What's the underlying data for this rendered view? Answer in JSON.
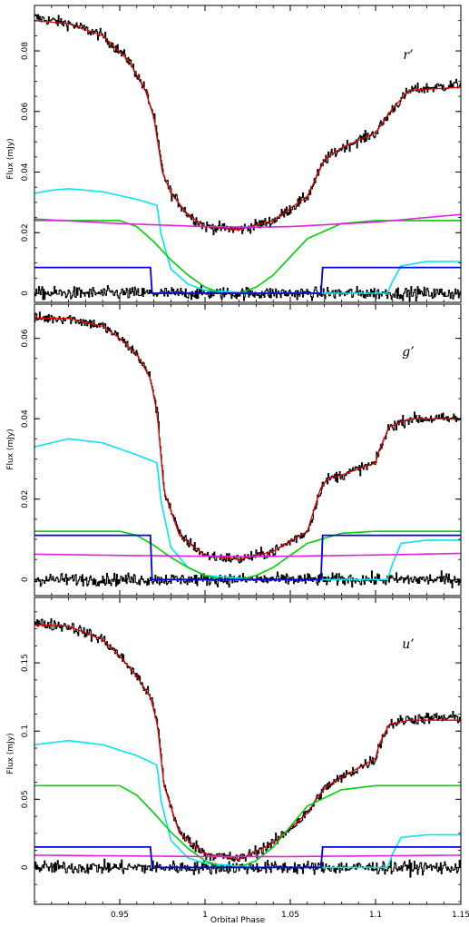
{
  "figure": {
    "xlabel": "Orbital Phase",
    "ylabel": "Flux (mJy)"
  },
  "chart_data": [
    {
      "type": "line",
      "band_label": "r’",
      "xlim": [
        0.9,
        1.15
      ],
      "ylim": [
        -0.003,
        0.095
      ],
      "yticks": [
        0,
        0.02,
        0.04,
        0.06,
        0.08
      ],
      "ytick_labels": [
        "0",
        "0.02",
        "0.04",
        "0.06",
        "0.08"
      ],
      "series": [
        {
          "color": "#000000",
          "style": "noisy-data",
          "x": [
            0.9,
            0.92,
            0.94,
            0.955,
            0.965,
            0.97,
            0.975,
            0.98,
            0.99,
            1.0,
            1.02,
            1.04,
            1.06,
            1.07,
            1.08,
            1.1,
            1.11,
            1.12,
            1.15
          ],
          "y": [
            0.091,
            0.089,
            0.085,
            0.077,
            0.067,
            0.058,
            0.04,
            0.033,
            0.026,
            0.022,
            0.021,
            0.024,
            0.032,
            0.044,
            0.048,
            0.053,
            0.061,
            0.067,
            0.069
          ]
        },
        {
          "color": "#e00000",
          "style": "model",
          "x": [
            0.9,
            0.92,
            0.94,
            0.955,
            0.965,
            0.97,
            0.975,
            0.98,
            0.99,
            1.0,
            1.02,
            1.04,
            1.06,
            1.07,
            1.08,
            1.1,
            1.11,
            1.12,
            1.15
          ],
          "y": [
            0.09,
            0.089,
            0.085,
            0.077,
            0.067,
            0.058,
            0.04,
            0.033,
            0.026,
            0.022,
            0.021,
            0.024,
            0.032,
            0.044,
            0.048,
            0.053,
            0.061,
            0.067,
            0.068
          ]
        },
        {
          "color": "#00e5ee",
          "style": "model",
          "x": [
            0.9,
            0.91,
            0.92,
            0.94,
            0.96,
            0.972,
            0.974,
            0.98,
            0.99,
            1.0,
            1.03,
            1.06,
            1.09,
            1.107,
            1.11,
            1.115,
            1.13,
            1.15
          ],
          "y": [
            0.033,
            0.034,
            0.0345,
            0.0335,
            0.031,
            0.029,
            0.02,
            0.008,
            0.003,
            0.001,
            0.0,
            0.0,
            0.0,
            0.0,
            0.004,
            0.009,
            0.0105,
            0.0105
          ]
        },
        {
          "color": "#00d000",
          "style": "model",
          "x": [
            0.9,
            0.95,
            0.96,
            0.97,
            0.98,
            0.99,
            1.0,
            1.01,
            1.02,
            1.03,
            1.04,
            1.05,
            1.06,
            1.08,
            1.1,
            1.15
          ],
          "y": [
            0.024,
            0.024,
            0.022,
            0.017,
            0.011,
            0.006,
            0.002,
            0.0,
            0.0,
            0.002,
            0.006,
            0.012,
            0.018,
            0.023,
            0.024,
            0.024
          ]
        },
        {
          "color": "#e020e0",
          "style": "model",
          "x": [
            0.9,
            0.95,
            1.0,
            1.025,
            1.05,
            1.1,
            1.15
          ],
          "y": [
            0.0245,
            0.023,
            0.022,
            0.0218,
            0.022,
            0.0235,
            0.026
          ]
        },
        {
          "color": "#0000e0",
          "style": "step",
          "x": [
            0.9,
            0.968,
            0.969,
            1.068,
            1.069,
            1.15
          ],
          "y": [
            0.0085,
            0.0085,
            0.0,
            0.0,
            0.0085,
            0.0085
          ]
        },
        {
          "color": "#000000",
          "style": "residuals",
          "x": [
            0.9,
            1.15
          ],
          "y": [
            0.0,
            0.0
          ]
        }
      ]
    },
    {
      "type": "line",
      "band_label": "g’",
      "xlim": [
        0.9,
        1.15
      ],
      "ylim": [
        -0.004,
        0.0685
      ],
      "yticks": [
        0,
        0.02,
        0.04,
        0.06
      ],
      "ytick_labels": [
        "0",
        "0.02",
        "0.04",
        "0.06"
      ],
      "series": [
        {
          "color": "#000000",
          "style": "noisy-data",
          "x": [
            0.9,
            0.92,
            0.94,
            0.95,
            0.96,
            0.968,
            0.972,
            0.976,
            0.985,
            1.0,
            1.02,
            1.04,
            1.06,
            1.068,
            1.072,
            1.08,
            1.1,
            1.102,
            1.108,
            1.12,
            1.15
          ],
          "y": [
            0.065,
            0.065,
            0.063,
            0.06,
            0.056,
            0.05,
            0.041,
            0.022,
            0.011,
            0.006,
            0.005,
            0.007,
            0.012,
            0.023,
            0.025,
            0.026,
            0.029,
            0.032,
            0.038,
            0.04,
            0.04
          ]
        },
        {
          "color": "#e00000",
          "style": "model",
          "x": [
            0.9,
            0.92,
            0.94,
            0.95,
            0.96,
            0.968,
            0.972,
            0.976,
            0.985,
            1.0,
            1.02,
            1.04,
            1.06,
            1.068,
            1.072,
            1.08,
            1.1,
            1.102,
            1.108,
            1.12,
            1.15
          ],
          "y": [
            0.065,
            0.065,
            0.063,
            0.06,
            0.056,
            0.05,
            0.041,
            0.022,
            0.011,
            0.006,
            0.005,
            0.007,
            0.012,
            0.023,
            0.025,
            0.026,
            0.029,
            0.032,
            0.038,
            0.04,
            0.04
          ]
        },
        {
          "color": "#00e5ee",
          "style": "model",
          "x": [
            0.9,
            0.92,
            0.94,
            0.96,
            0.972,
            0.974,
            0.98,
            0.99,
            1.0,
            1.03,
            1.06,
            1.09,
            1.107,
            1.11,
            1.115,
            1.13,
            1.15
          ],
          "y": [
            0.033,
            0.035,
            0.034,
            0.031,
            0.029,
            0.02,
            0.008,
            0.003,
            0.001,
            0.0,
            0.0,
            0.0,
            0.0,
            0.004,
            0.009,
            0.0098,
            0.0098
          ]
        },
        {
          "color": "#00d000",
          "style": "model",
          "x": [
            0.9,
            0.95,
            0.96,
            0.97,
            0.98,
            0.99,
            1.0,
            1.01,
            1.02,
            1.03,
            1.04,
            1.05,
            1.06,
            1.08,
            1.1,
            1.15
          ],
          "y": [
            0.012,
            0.012,
            0.011,
            0.0085,
            0.0055,
            0.003,
            0.001,
            0.0,
            0.0,
            0.001,
            0.003,
            0.006,
            0.009,
            0.0115,
            0.012,
            0.012
          ]
        },
        {
          "color": "#e020e0",
          "style": "model",
          "x": [
            0.9,
            0.95,
            1.0,
            1.025,
            1.05,
            1.1,
            1.15
          ],
          "y": [
            0.0063,
            0.006,
            0.0058,
            0.0057,
            0.0058,
            0.0061,
            0.0065
          ]
        },
        {
          "color": "#0000e0",
          "style": "step",
          "x": [
            0.9,
            0.968,
            0.969,
            1.068,
            1.069,
            1.15
          ],
          "y": [
            0.011,
            0.011,
            0.0,
            0.0,
            0.011,
            0.011
          ]
        },
        {
          "color": "#000000",
          "style": "residuals",
          "x": [
            0.9,
            1.15
          ],
          "y": [
            0.0,
            0.0
          ]
        }
      ]
    },
    {
      "type": "line",
      "band_label": "u’",
      "xlim": [
        0.9,
        1.15
      ],
      "ylim": [
        -0.027,
        0.198
      ],
      "yticks": [
        0,
        0.05,
        0.1,
        0.15
      ],
      "ytick_labels": [
        "0",
        "0.05",
        "0.1",
        "0.15"
      ],
      "xticks": [
        0.95,
        1.0,
        1.05,
        1.1,
        1.15
      ],
      "xtick_labels": [
        "0.95",
        "1",
        "1.05",
        "1.1",
        "1.15"
      ],
      "series": [
        {
          "color": "#000000",
          "style": "noisy-data",
          "x": [
            0.9,
            0.92,
            0.94,
            0.95,
            0.96,
            0.968,
            0.972,
            0.976,
            0.985,
            1.0,
            1.02,
            1.04,
            1.06,
            1.068,
            1.072,
            1.09,
            1.1,
            1.102,
            1.108,
            1.12,
            1.15
          ],
          "y": [
            0.179,
            0.177,
            0.167,
            0.155,
            0.14,
            0.125,
            0.105,
            0.06,
            0.025,
            0.01,
            0.006,
            0.018,
            0.04,
            0.055,
            0.06,
            0.073,
            0.08,
            0.09,
            0.105,
            0.109,
            0.11
          ]
        },
        {
          "color": "#e00000",
          "style": "model",
          "x": [
            0.9,
            0.92,
            0.94,
            0.95,
            0.96,
            0.968,
            0.972,
            0.976,
            0.985,
            1.0,
            1.02,
            1.04,
            1.06,
            1.068,
            1.072,
            1.09,
            1.1,
            1.102,
            1.108,
            1.12,
            1.15
          ],
          "y": [
            0.178,
            0.177,
            0.167,
            0.155,
            0.14,
            0.125,
            0.105,
            0.06,
            0.025,
            0.01,
            0.006,
            0.018,
            0.04,
            0.055,
            0.06,
            0.073,
            0.08,
            0.09,
            0.105,
            0.108,
            0.108
          ]
        },
        {
          "color": "#00e5ee",
          "style": "model",
          "x": [
            0.9,
            0.92,
            0.94,
            0.96,
            0.972,
            0.974,
            0.98,
            0.99,
            1.0,
            1.03,
            1.06,
            1.09,
            1.107,
            1.11,
            1.115,
            1.13,
            1.15
          ],
          "y": [
            0.09,
            0.093,
            0.09,
            0.082,
            0.075,
            0.05,
            0.02,
            0.007,
            0.003,
            0.0,
            0.0,
            0.0,
            0.0,
            0.01,
            0.022,
            0.024,
            0.024
          ]
        },
        {
          "color": "#00d000",
          "style": "model",
          "x": [
            0.9,
            0.95,
            0.96,
            0.97,
            0.98,
            0.99,
            1.0,
            1.01,
            1.02,
            1.03,
            1.04,
            1.05,
            1.06,
            1.08,
            1.1,
            1.15
          ],
          "y": [
            0.06,
            0.06,
            0.053,
            0.04,
            0.026,
            0.014,
            0.005,
            0.0,
            0.0,
            0.005,
            0.015,
            0.03,
            0.045,
            0.057,
            0.06,
            0.06
          ]
        },
        {
          "color": "#e020e0",
          "style": "model",
          "x": [
            0.9,
            0.95,
            1.0,
            1.025,
            1.05,
            1.1,
            1.15
          ],
          "y": [
            0.009,
            0.0085,
            0.008,
            0.008,
            0.008,
            0.0085,
            0.009
          ]
        },
        {
          "color": "#0000e0",
          "style": "step",
          "x": [
            0.9,
            0.968,
            0.969,
            1.068,
            1.069,
            1.15
          ],
          "y": [
            0.015,
            0.015,
            0.0,
            0.0,
            0.015,
            0.015
          ]
        },
        {
          "color": "#000000",
          "style": "residuals",
          "x": [
            0.9,
            1.15
          ],
          "y": [
            0.0,
            0.0
          ]
        }
      ]
    }
  ]
}
